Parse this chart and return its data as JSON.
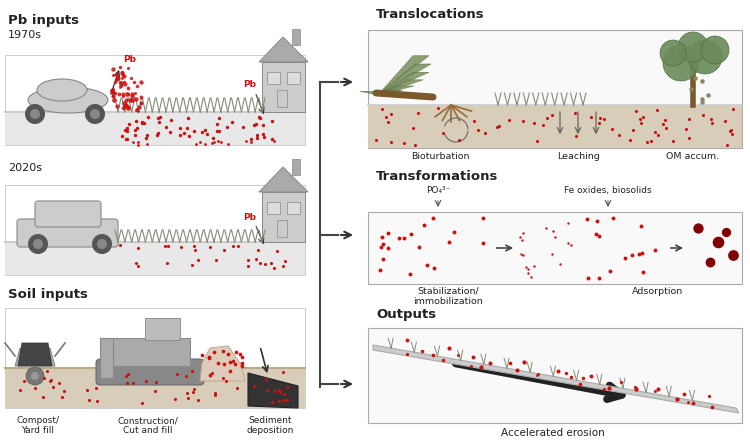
{
  "fig_width": 7.5,
  "fig_height": 4.48,
  "dpi": 100,
  "bg_color": "#ffffff",
  "left_panel": {
    "pb_inputs_title": "Pb inputs",
    "label_1970s": "1970s",
    "label_2020s": "2020s",
    "soil_inputs_title": "Soil inputs",
    "compost_label": "Compost/\nYard fill",
    "construction_label": "Construction/\nCut and fill",
    "sediment_label": "Sediment\ndeposition"
  },
  "right_panel": {
    "translocations_title": "Translocations",
    "bioturbation_label": "Bioturbation",
    "leaching_label": "Leaching",
    "om_label": "OM accum.",
    "transformations_title": "Transformations",
    "po4_label": "PO₄³⁻",
    "fe_label": "Fe oxides, biosolids",
    "stabilization_label": "Stabilization/\nimmobilization",
    "adsorption_label": "Adsorption",
    "outputs_title": "Outputs",
    "erosion_label": "Accelerated erosion"
  },
  "colors": {
    "red_dots": "#cc1111",
    "dark_red": "#800000",
    "gray_light": "#cccccc",
    "gray_mid": "#aaaaaa",
    "gray_dark": "#888888",
    "ground_fill": "#e8e8e8",
    "soil_fill": "#d8cdb8",
    "grass": "#888877",
    "tree_green": "#6a8a5a",
    "trunk": "#7a5a2a",
    "text": "#222222",
    "box_bg": "#f9f9f9",
    "box_edge": "#aaaaaa"
  }
}
